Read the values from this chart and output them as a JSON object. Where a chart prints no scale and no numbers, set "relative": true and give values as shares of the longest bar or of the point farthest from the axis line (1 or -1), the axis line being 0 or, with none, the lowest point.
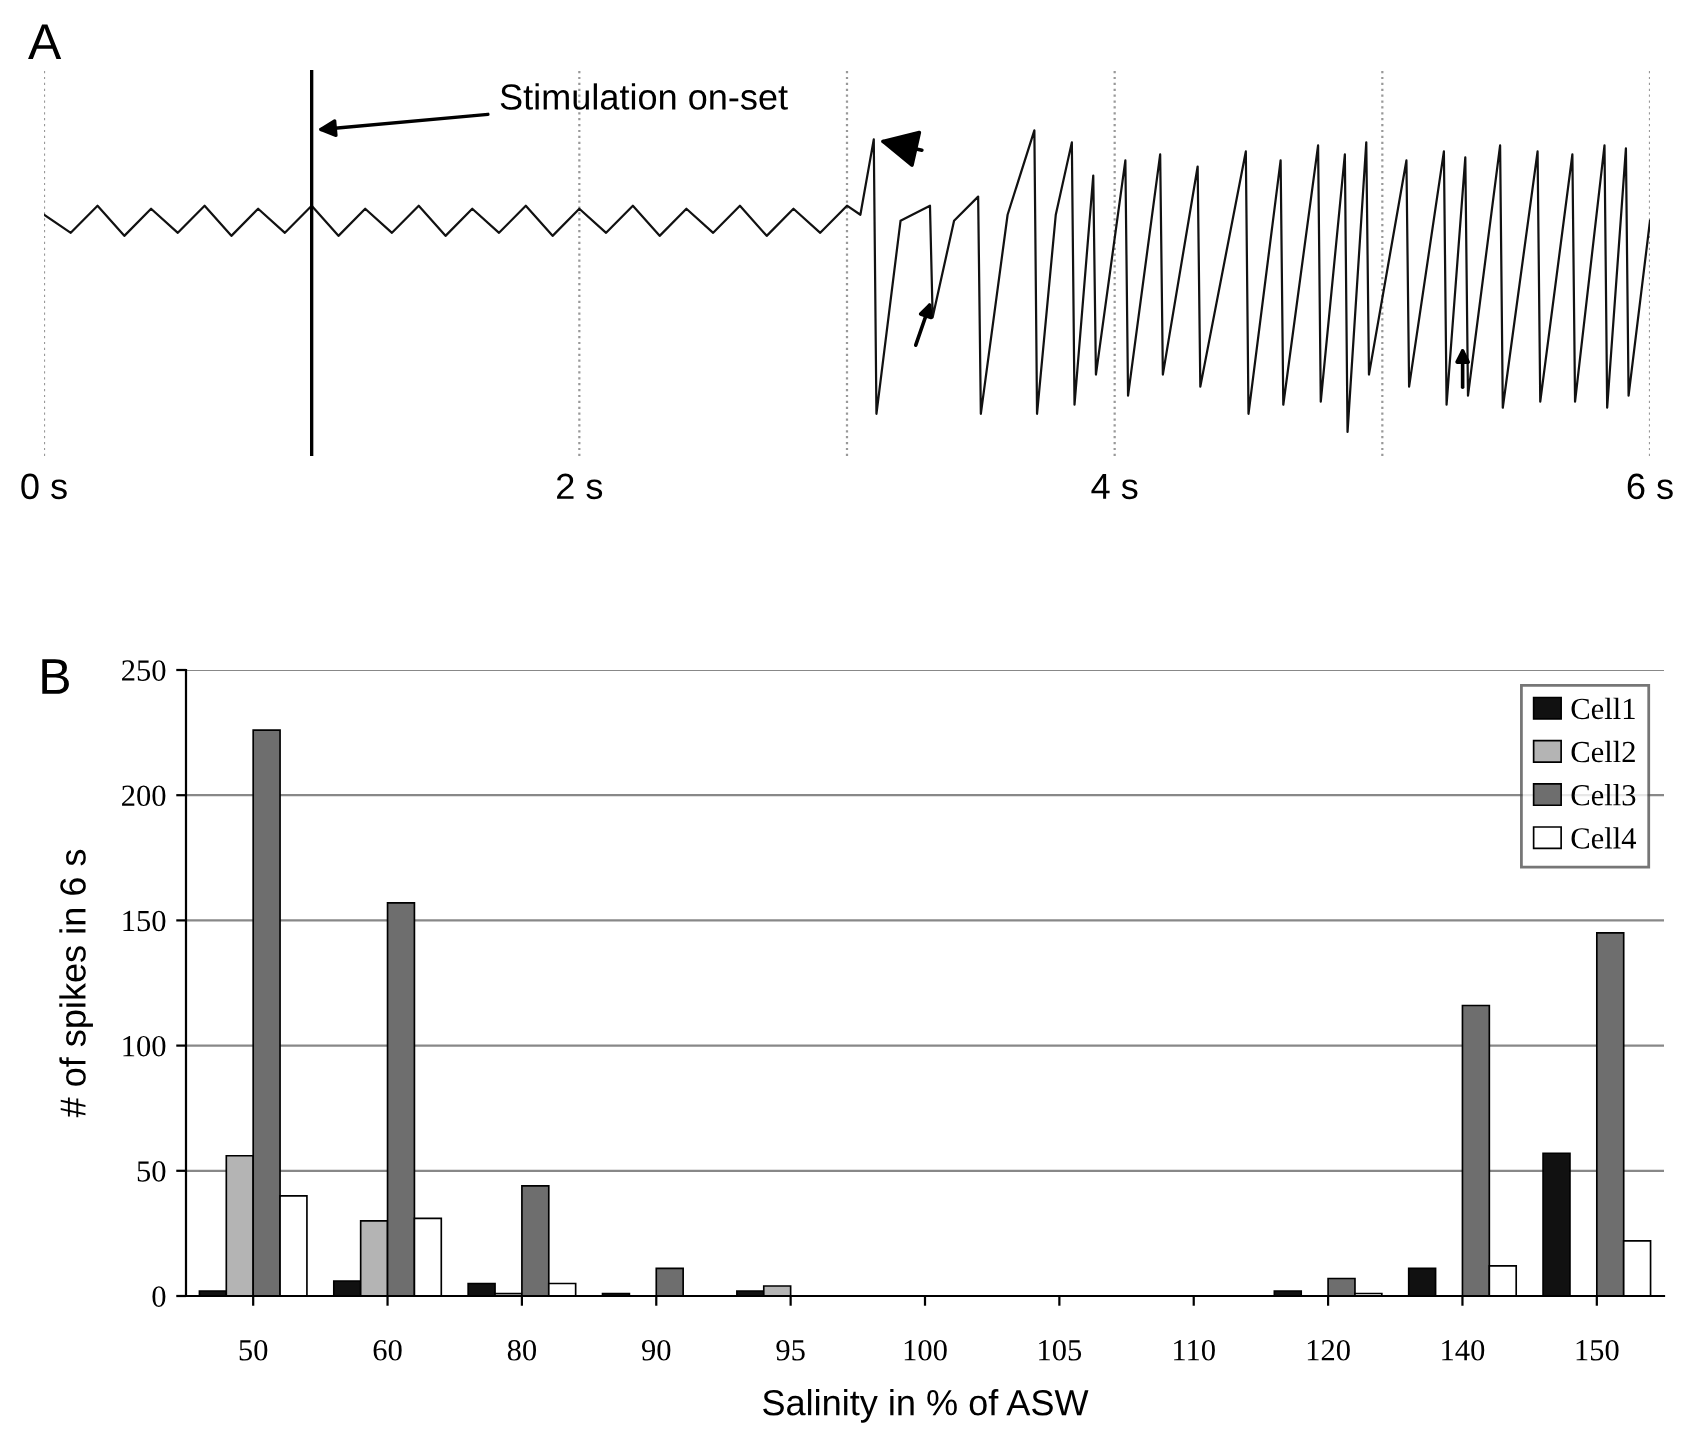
{
  "chart_data": [
    {
      "type": "line",
      "title": "A",
      "relative": true,
      "color": "#111111",
      "x": [
        0,
        0.1,
        0.2,
        0.3,
        0.4,
        0.5,
        0.6,
        0.7,
        0.8,
        0.9,
        1.0,
        1.1,
        1.2,
        1.3,
        1.4,
        1.5,
        1.6,
        1.7,
        1.8,
        1.9,
        2.0,
        2.1,
        2.2,
        2.3,
        2.4,
        2.5,
        2.6,
        2.7,
        2.8,
        2.9,
        3.0,
        3.05,
        3.1,
        3.11,
        3.2,
        3.31,
        3.32,
        3.4,
        3.49,
        3.5,
        3.6,
        3.7,
        3.71,
        3.78,
        3.84,
        3.85,
        3.92,
        3.93,
        4.04,
        4.05,
        4.17,
        4.18,
        4.31,
        4.32,
        4.49,
        4.5,
        4.62,
        4.63,
        4.76,
        4.77,
        4.86,
        4.87,
        4.94,
        4.95,
        5.09,
        5.1,
        5.23,
        5.24,
        5.31,
        5.32,
        5.44,
        5.45,
        5.58,
        5.59,
        5.71,
        5.72,
        5.83,
        5.84,
        5.91,
        5.92,
        6.0
      ],
      "values": [
        0.72,
        0.66,
        0.75,
        0.65,
        0.74,
        0.66,
        0.75,
        0.65,
        0.74,
        0.66,
        0.75,
        0.65,
        0.74,
        0.66,
        0.75,
        0.65,
        0.74,
        0.66,
        0.75,
        0.65,
        0.74,
        0.66,
        0.75,
        0.65,
        0.74,
        0.66,
        0.75,
        0.65,
        0.74,
        0.66,
        0.75,
        0.72,
        0.97,
        0.06,
        0.7,
        0.75,
        0.38,
        0.7,
        0.78,
        0.06,
        0.72,
        1.0,
        0.06,
        0.72,
        0.96,
        0.09,
        0.85,
        0.19,
        0.9,
        0.12,
        0.92,
        0.19,
        0.88,
        0.15,
        0.93,
        0.06,
        0.9,
        0.09,
        0.95,
        0.1,
        0.92,
        0.0,
        0.96,
        0.19,
        0.9,
        0.15,
        0.93,
        0.09,
        0.91,
        0.12,
        0.95,
        0.08,
        0.93,
        0.1,
        0.92,
        0.1,
        0.95,
        0.08,
        0.94,
        0.12,
        0.7
      ],
      "xlim": [
        0,
        6
      ],
      "xticks": [
        {
          "value": 0,
          "label": "0 s"
        },
        {
          "value": 1,
          "label": null
        },
        {
          "value": 2,
          "label": "2 s"
        },
        {
          "value": 3,
          "label": null
        },
        {
          "value": 4,
          "label": "4 s"
        },
        {
          "value": 5,
          "label": null
        },
        {
          "value": 6,
          "label": "6 s"
        }
      ],
      "grid": "x",
      "tick_labels": "x",
      "ref_lines": [
        {
          "axis": "x",
          "value": 1,
          "color": "#000000"
        }
      ],
      "annotations": [
        {
          "text": "Stimulation on-set",
          "x": 1,
          "y": 1.0
        }
      ]
    },
    {
      "type": "bar",
      "title": "B",
      "xlabel": "Salinity in % of ASW",
      "ylabel": "# of spikes in 6 s",
      "categories": [
        "50",
        "60",
        "80",
        "90",
        "95",
        "100",
        "105",
        "110",
        "120",
        "140",
        "150"
      ],
      "series": [
        {
          "name": "Cell1",
          "color": "#111111",
          "values": [
            2,
            6,
            5,
            1,
            2,
            0,
            0,
            0,
            2,
            11,
            57
          ]
        },
        {
          "name": "Cell2",
          "color": "#b4b4b4",
          "values": [
            56,
            30,
            1,
            0,
            4,
            0,
            0,
            0,
            0,
            0,
            0
          ]
        },
        {
          "name": "Cell3",
          "color": "#6e6e6e",
          "values": [
            226,
            157,
            44,
            11,
            0,
            0,
            0,
            0,
            7,
            116,
            145
          ]
        },
        {
          "name": "Cell4",
          "color": "#ffffff",
          "values": [
            40,
            31,
            5,
            0,
            0,
            0,
            0,
            0,
            1,
            12,
            22
          ]
        }
      ],
      "ylim": [
        0,
        250
      ],
      "yticks": [
        0,
        50,
        100,
        150,
        200,
        250
      ],
      "grid": "y",
      "legend": "top right"
    }
  ]
}
